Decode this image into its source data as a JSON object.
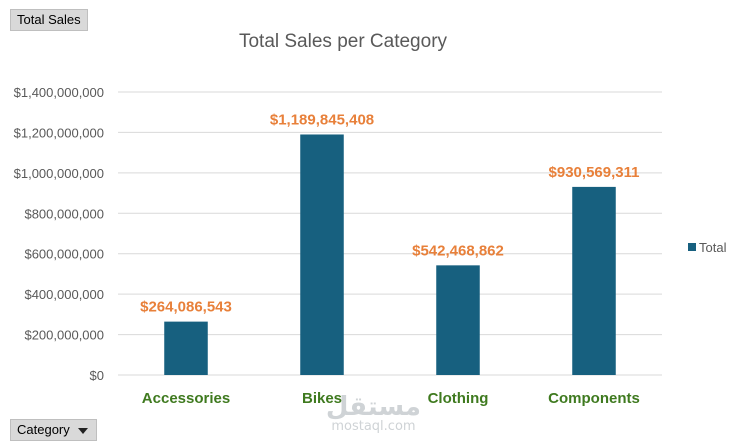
{
  "pivot_fields": {
    "value_field": "Total Sales",
    "axis_field": "Category"
  },
  "watermark": {
    "logo_text": "مستقل",
    "domain": "mostaql.com"
  },
  "chart_data": {
    "type": "bar",
    "title": "Total Sales per Category",
    "categories": [
      "Accessories",
      "Bikes",
      "Clothing",
      "Components"
    ],
    "series": [
      {
        "name": "Total",
        "values": [
          264086543,
          1189845408,
          542468862,
          930569311
        ],
        "data_labels": [
          "$264,086,543",
          "$1,189,845,408",
          "$542,468,862",
          "$930,569,311"
        ]
      }
    ],
    "ylim": [
      0,
      1400000000
    ],
    "yticks": [
      0,
      200000000,
      400000000,
      600000000,
      800000000,
      1000000000,
      1200000000,
      1400000000
    ],
    "ytick_labels": [
      "$0",
      "$200,000,000",
      "$400,000,000",
      "$600,000,000",
      "$800,000,000",
      "$1,000,000,000",
      "$1,200,000,000",
      "$1,400,000,000"
    ],
    "grid": true,
    "legend": "right",
    "colors": {
      "bar": "#17607f",
      "data_label": "#e8803a",
      "category_label": "#3f7a1f",
      "axis_text": "#595959",
      "gridline": "#d9d9d9"
    }
  }
}
